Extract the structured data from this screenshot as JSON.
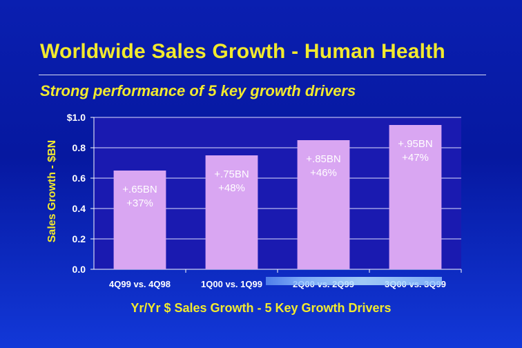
{
  "chart_data": {
    "type": "bar",
    "title": "Worldwide Sales Growth - Human Health",
    "subtitle": "Strong performance of 5 key growth drivers",
    "xlabel": "Yr/Yr $ Sales Growth - 5 Key Growth Drivers",
    "ylabel": "Sales Growth - $BN",
    "ylim": [
      0,
      1.0
    ],
    "ytick_labels": [
      "0.0",
      "0.2",
      "0.4",
      "0.6",
      "0.8",
      "$1.0"
    ],
    "categories": [
      "4Q99 vs. 4Q98",
      "1Q00 vs. 1Q99",
      "2Q00 vs. 2Q99",
      "3Q00 vs. 3Q99"
    ],
    "values": [
      0.65,
      0.75,
      0.85,
      0.95
    ],
    "data_labels": [
      [
        "+.65BN",
        "+37%"
      ],
      [
        "+.75BN",
        "+48%"
      ],
      [
        "+.85BN",
        "+46%"
      ],
      [
        "+.95BN",
        "+47%"
      ]
    ],
    "grid": true,
    "colors": {
      "bar": "#d9a6f2",
      "plot_bg": "#1a1ab0",
      "title": "#f2ea2e",
      "axis_text": "#ffffff",
      "gridline": "#e0e0ff"
    }
  }
}
